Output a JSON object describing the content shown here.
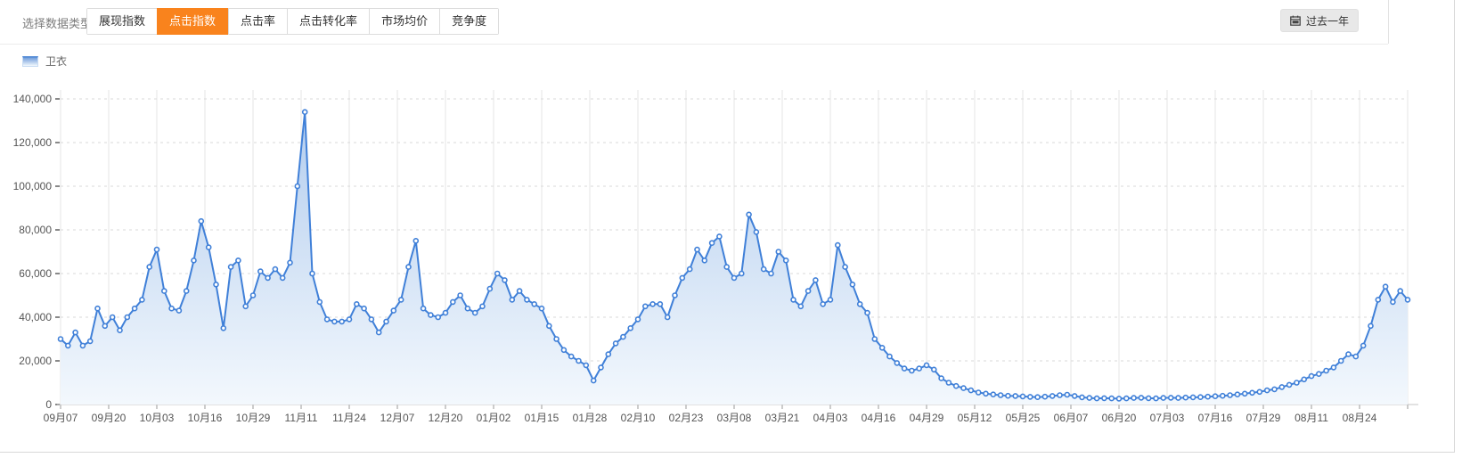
{
  "accent_color": "#f9831d",
  "header": {
    "label": "选择数据类型：",
    "tabs": [
      {
        "label": "展现指数",
        "active": false
      },
      {
        "label": "点击指数",
        "active": true
      },
      {
        "label": "点击率",
        "active": false
      },
      {
        "label": "点击转化率",
        "active": false
      },
      {
        "label": "市场均价",
        "active": false
      },
      {
        "label": "竞争度",
        "active": false
      }
    ],
    "range_button": {
      "label": "过去一年",
      "icon": "calendar-icon"
    }
  },
  "legend": [
    {
      "label": "卫衣",
      "color": "#4080d8"
    }
  ],
  "chart_data": {
    "type": "area",
    "title": "",
    "xlabel": "",
    "ylabel": "",
    "ylim": [
      0,
      140000
    ],
    "y_ticks": [
      0,
      20000,
      40000,
      60000,
      80000,
      100000,
      120000,
      140000
    ],
    "grid": {
      "horizontal": "dashed",
      "vertical": "solid"
    },
    "legend_position": "top-left",
    "line_color": "#4080d8",
    "marker": "hollow-circle",
    "area_gradient": [
      "#b3cdee",
      "#f3f8fd"
    ],
    "x_axis": {
      "tick_labels": [
        "09月07",
        "09月20",
        "10月03",
        "10月16",
        "10月29",
        "11月11",
        "11月24",
        "12月07",
        "12月20",
        "01月02",
        "01月15",
        "01月28",
        "02月10",
        "02月23",
        "03月08",
        "03月21",
        "04月03",
        "04月16",
        "04月29",
        "05月12",
        "05月25",
        "06月07",
        "06月20",
        "07月03",
        "07月16",
        "07月29",
        "08月11",
        "08月24"
      ],
      "days_per_tick": 13,
      "extra_unlabeled_end_tick": true
    },
    "sample_interval_days": 2,
    "series": [
      {
        "name": "卫衣",
        "values": [
          30000,
          27000,
          33000,
          27000,
          29000,
          44000,
          36000,
          40000,
          34000,
          40000,
          44000,
          48000,
          63000,
          71000,
          52000,
          44000,
          43000,
          52000,
          66000,
          84000,
          72000,
          55000,
          35000,
          63000,
          66000,
          45000,
          50000,
          61000,
          58000,
          62000,
          58000,
          65000,
          100000,
          134000,
          60000,
          47000,
          39000,
          38000,
          38000,
          39000,
          46000,
          44000,
          39000,
          33000,
          38000,
          43000,
          48000,
          63000,
          75000,
          44000,
          41000,
          40000,
          42000,
          47000,
          50000,
          44000,
          42000,
          45000,
          53000,
          60000,
          57000,
          48000,
          52000,
          48000,
          46000,
          44000,
          36000,
          30000,
          25000,
          22000,
          20000,
          18000,
          11000,
          17000,
          23000,
          28000,
          31000,
          35000,
          39000,
          45000,
          46000,
          46000,
          40000,
          50000,
          58000,
          62000,
          71000,
          66000,
          74000,
          77000,
          63000,
          58000,
          60000,
          87000,
          79000,
          62000,
          60000,
          70000,
          66000,
          48000,
          45000,
          52000,
          57000,
          46000,
          48000,
          73000,
          63000,
          55000,
          46000,
          42000,
          30000,
          26000,
          22000,
          19000,
          16500,
          15500,
          16500,
          18000,
          16000,
          12000,
          10000,
          8500,
          7500,
          6500,
          5500,
          5000,
          4600,
          4300,
          4000,
          3900,
          3700,
          3500,
          3400,
          3600,
          3900,
          4300,
          4500,
          3900,
          3300,
          3000,
          2800,
          2900,
          2800,
          2700,
          2800,
          3000,
          3100,
          2900,
          2800,
          3000,
          3100,
          3000,
          3200,
          3300,
          3400,
          3600,
          3800,
          4000,
          4300,
          4600,
          5000,
          5400,
          5800,
          6500,
          7000,
          8000,
          9000,
          10000,
          11500,
          13000,
          14000,
          15500,
          17000,
          20000,
          23000,
          22000,
          27000,
          36000,
          48000,
          54000,
          47000,
          52000,
          48000
        ]
      }
    ]
  }
}
